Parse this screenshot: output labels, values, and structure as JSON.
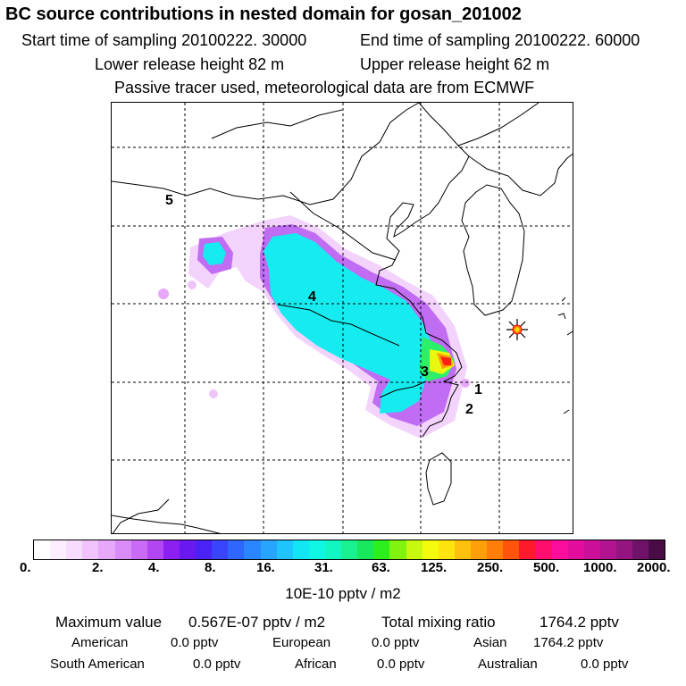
{
  "title": "BC  source contributions in nested domain for gosan_201002",
  "sampling": {
    "start": "Start time of sampling 20100222. 30000",
    "end": "End time of sampling 20100222. 60000"
  },
  "release": {
    "lower": "Lower release height   82 m",
    "upper": "Upper release height   62 m"
  },
  "info": "Passive tracer used, meteorological data are from ECMWF",
  "map": {
    "labels": [
      "1",
      "2",
      "3",
      "4",
      "5"
    ],
    "marker": "receptor-star"
  },
  "colorbar": {
    "colors": [
      "#ffffff",
      "#fbeefe",
      "#f7dcfd",
      "#f0c4fb",
      "#e7a8f9",
      "#d98cf7",
      "#c96bf5",
      "#b146f2",
      "#8b20f0",
      "#6a18f0",
      "#4b22f5",
      "#3a45fb",
      "#2f66fd",
      "#2a86fe",
      "#27a4fe",
      "#1fc3fe",
      "#12e6f4",
      "#0ff7e4",
      "#11f6c2",
      "#19f08f",
      "#18e85c",
      "#2cef1e",
      "#80f40f",
      "#c8f80e",
      "#f5fb0d",
      "#ffe40d",
      "#ffc10b",
      "#ffa00a",
      "#ff7d09",
      "#ff5409",
      "#ff1a2b",
      "#ff0e6e",
      "#fb0c9a",
      "#e40c9c",
      "#cc0f99",
      "#b21391",
      "#941580",
      "#6f1268",
      "#4a0c45"
    ],
    "ticks": [
      "0.",
      "2.",
      "4.",
      "8.",
      "16.",
      "31.",
      "63.",
      "125.",
      "250.",
      "500.",
      "1000.",
      "2000."
    ],
    "unit": "10E-10 pptv / m2"
  },
  "summary": {
    "max_label": "Maximum value",
    "max_value": "0.567E-07 pptv / m2",
    "total_label": "Total mixing ratio",
    "total_value": "1764.2 pptv"
  },
  "regions": [
    {
      "name": "American",
      "value": "0.0 pptv"
    },
    {
      "name": "European",
      "value": "0.0 pptv"
    },
    {
      "name": "Asian",
      "value": "1764.2 pptv"
    },
    {
      "name": "South American",
      "value": "0.0 pptv"
    },
    {
      "name": "African",
      "value": "0.0 pptv"
    },
    {
      "name": "Australian",
      "value": "0.0 pptv"
    }
  ]
}
